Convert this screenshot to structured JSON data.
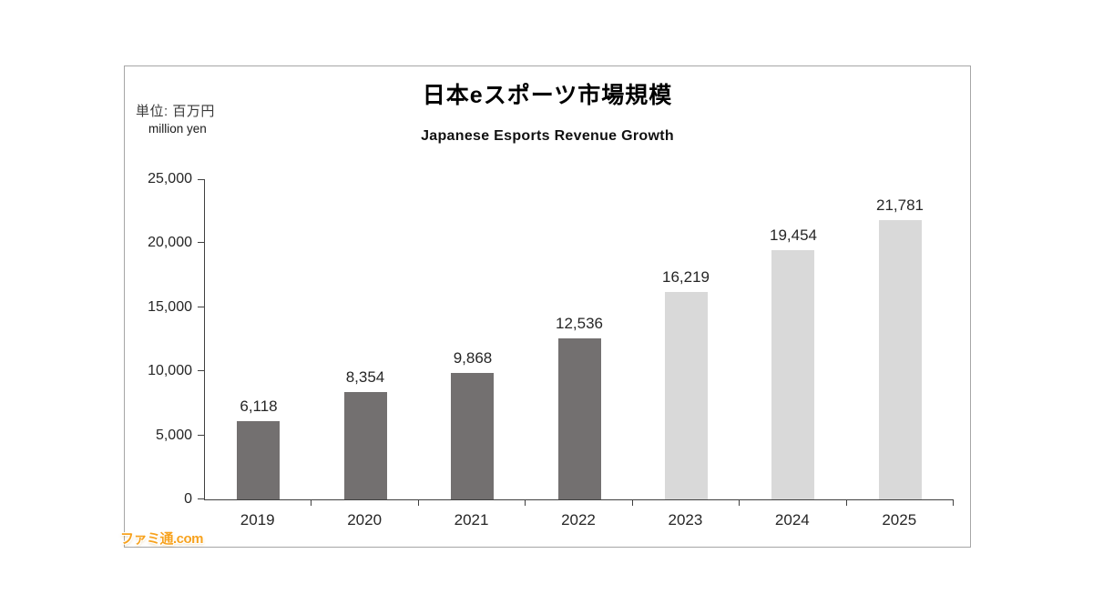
{
  "chart": {
    "unit_label_jp": "単位: 百万円",
    "unit_label_en": "million yen",
    "title": "日本eスポーツ市場規模",
    "subtitle": "Japanese Esports Revenue Growth"
  },
  "watermark": {
    "text": "ファミ通.com",
    "color": "#F7A21E"
  },
  "colors": {
    "bar_actual": "#737070",
    "bar_forecast": "#D9D9D9",
    "axis": "#404040",
    "frame_border": "#A6A6A6",
    "label_text": "#262626"
  },
  "chart_data": {
    "type": "bar",
    "title": "日本eスポーツ市場規模",
    "subtitle": "Japanese Esports Revenue Growth",
    "unit": "百万円 (million yen)",
    "categories": [
      "2019",
      "2020",
      "2021",
      "2022",
      "2023",
      "2024",
      "2025"
    ],
    "values": [
      6118,
      8354,
      9868,
      12536,
      16219,
      19454,
      21781
    ],
    "value_labels": [
      "6,118",
      "8,354",
      "9,868",
      "12,536",
      "16,219",
      "19,454",
      "21,781"
    ],
    "bar_styles": [
      "actual",
      "actual",
      "actual",
      "actual",
      "forecast",
      "forecast",
      "forecast"
    ],
    "xlabel": "",
    "ylabel": "百万円 million yen",
    "ylim": [
      0,
      25000
    ],
    "ytick_interval": 5000,
    "ytick_labels": [
      "0",
      "5,000",
      "10,000",
      "15,000",
      "20,000",
      "25,000"
    ],
    "grid": false,
    "legend_position": "none"
  }
}
